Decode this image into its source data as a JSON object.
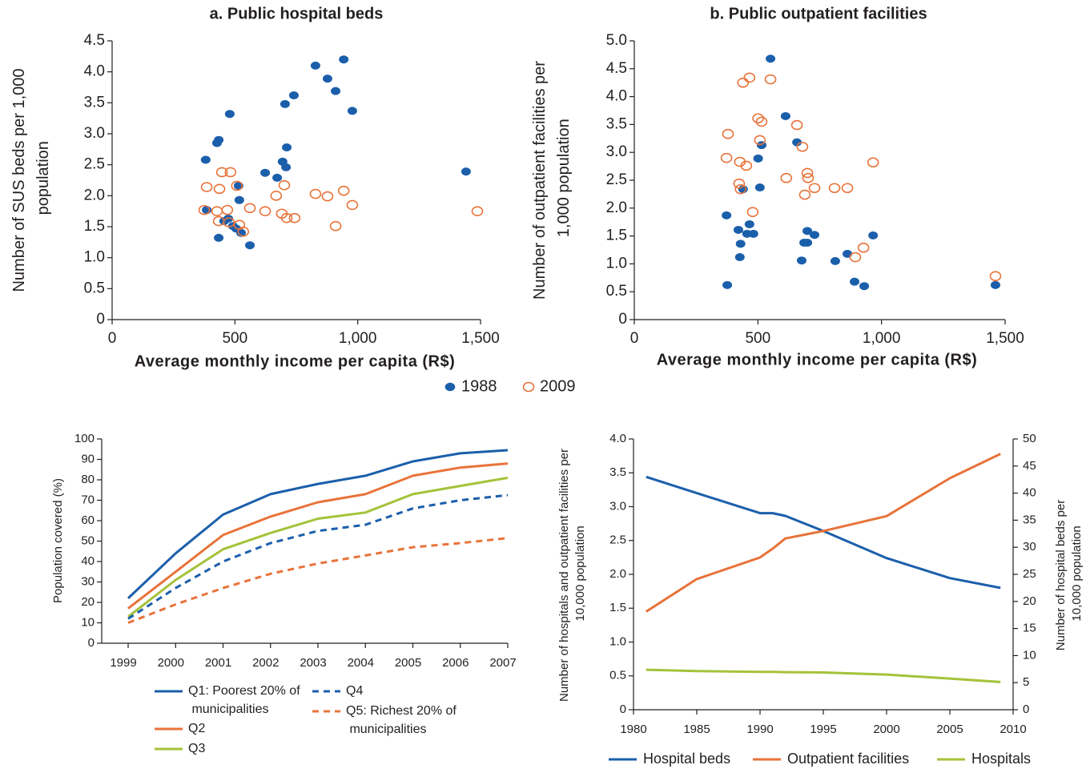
{
  "chart_data": [
    {
      "type": "scatter",
      "title": "a. Public hospital beds",
      "xlabel": "Average monthly income per capita (R$)",
      "ylabel": "Number of SUS beds per 1,000 population",
      "xlim": [
        0,
        1500
      ],
      "xticks": [
        0,
        500,
        {
          "value": 1000,
          "label": "1,000"
        },
        {
          "value": 1500,
          "label": "1,500"
        }
      ],
      "ylim": [
        0,
        4.5
      ],
      "yticks": [
        0,
        0.5,
        {
          "value": 1,
          "label": "1.0"
        },
        1.5,
        {
          "value": 2,
          "label": "2.0"
        },
        2.5,
        {
          "value": 3,
          "label": "3.0"
        },
        3.5,
        {
          "value": 4,
          "label": "4.0"
        },
        4.5
      ],
      "series": [
        {
          "name": "1988",
          "color": "#1b5fab",
          "marker": "filled",
          "x": [
            381,
            434,
            427,
            479,
            385,
            434,
            456,
            473,
            492,
            505,
            525,
            515,
            518,
            561,
            623,
            672,
            694,
            708,
            711,
            704,
            740,
            828,
            877,
            910,
            943,
            978,
            1441
          ],
          "values": [
            2.58,
            2.9,
            2.85,
            3.32,
            1.77,
            1.32,
            1.59,
            1.63,
            1.51,
            1.47,
            1.4,
            2.16,
            1.93,
            1.2,
            2.37,
            2.29,
            2.55,
            2.46,
            2.78,
            3.48,
            3.62,
            4.1,
            3.89,
            3.69,
            4.2,
            3.37,
            2.39
          ]
        },
        {
          "name": "2009",
          "color": "#e8733a",
          "marker": "open",
          "x": [
            385,
            375,
            427,
            437,
            447,
            482,
            469,
            434,
            476,
            508,
            518,
            534,
            561,
            623,
            668,
            701,
            691,
            711,
            743,
            828,
            877,
            910,
            943,
            978,
            1487
          ],
          "values": [
            2.14,
            1.77,
            1.75,
            2.11,
            2.38,
            2.38,
            1.77,
            1.59,
            1.57,
            2.16,
            1.53,
            1.42,
            1.8,
            1.75,
            2.0,
            2.17,
            1.71,
            1.64,
            1.64,
            2.03,
            1.99,
            1.51,
            2.08,
            1.85,
            1.75
          ]
        }
      ]
    },
    {
      "type": "scatter",
      "title": "b. Public outpatient facilities",
      "xlabel": "Average monthly income per capita (R$)",
      "ylabel": "Number of outpatient facilities per 1,000 population",
      "xlim": [
        0,
        1500
      ],
      "xticks": [
        0,
        500,
        {
          "value": 1000,
          "label": "1,000"
        },
        {
          "value": 1500,
          "label": "1,500"
        }
      ],
      "ylim": [
        0,
        5
      ],
      "yticks": [
        0,
        0.5,
        {
          "value": 1,
          "label": "1.0"
        },
        1.5,
        {
          "value": 2,
          "label": "2.0"
        },
        2.5,
        {
          "value": 3,
          "label": "3.0"
        },
        3.5,
        {
          "value": 4,
          "label": "4.0"
        },
        4.5,
        {
          "value": 5,
          "label": "5.0"
        }
      ],
      "series": [
        {
          "color": "#1b5fab",
          "marker": "filled",
          "x": [
            551,
            612,
            658,
            515,
            501,
            508,
            440,
            373,
            421,
            466,
            456,
            482,
            430,
            427,
            700,
            729,
            700,
            687,
            677,
            813,
            862,
            966,
            891,
            930,
            376,
            1461
          ],
          "values": [
            4.68,
            3.65,
            3.18,
            3.13,
            2.89,
            2.37,
            2.34,
            1.87,
            1.61,
            1.71,
            1.54,
            1.54,
            1.36,
            1.12,
            1.59,
            1.52,
            1.38,
            1.38,
            1.06,
            1.05,
            1.18,
            1.51,
            0.68,
            0.6,
            0.62,
            0.62
          ]
        },
        {
          "color": "#e8733a",
          "marker": "open",
          "x": [
            440,
            466,
            551,
            501,
            515,
            379,
            658,
            680,
            508,
            373,
            427,
            453,
            424,
            430,
            479,
            615,
            700,
            703,
            690,
            729,
            810,
            862,
            966,
            927,
            894,
            1461
          ],
          "values": [
            4.25,
            4.34,
            4.31,
            3.61,
            3.55,
            3.33,
            3.49,
            3.1,
            3.22,
            2.9,
            2.83,
            2.76,
            2.44,
            2.34,
            1.93,
            2.54,
            2.63,
            2.54,
            2.24,
            2.36,
            2.36,
            2.36,
            2.82,
            1.29,
            1.12,
            0.78
          ]
        }
      ]
    },
    {
      "type": "line",
      "ylabel": "Population covered (%)",
      "categories": [
        "1999",
        "2000",
        "2001",
        "2002",
        "2003",
        "2004",
        "2005",
        "2006",
        "2007"
      ],
      "ylim": [
        0,
        100
      ],
      "yticks": [
        0,
        10,
        20,
        30,
        40,
        50,
        60,
        70,
        80,
        90,
        100
      ],
      "series": [
        {
          "name": "Q1: Poorest 20% of municipalities",
          "color": "#1b5fab",
          "dashed": false,
          "values": [
            22,
            44,
            63,
            73,
            78,
            82,
            89,
            93,
            94.5
          ]
        },
        {
          "name": "Q2",
          "color": "#e8733a",
          "dashed": false,
          "values": [
            17,
            35,
            53,
            62,
            69,
            73,
            82,
            86,
            88
          ]
        },
        {
          "name": "Q3",
          "color": "#a5c23a",
          "dashed": false,
          "values": [
            13,
            31,
            46,
            54,
            61,
            64,
            73,
            77,
            81
          ]
        },
        {
          "name": "Q4",
          "color": "#1b5fab",
          "dashed": true,
          "values": [
            12,
            27,
            40,
            49,
            55,
            58,
            66,
            70,
            72.5
          ]
        },
        {
          "name": "Q5: Richest 20% of municipalities",
          "color": "#e8733a",
          "dashed": true,
          "values": [
            10,
            19,
            27,
            34,
            39,
            43,
            47,
            49,
            51.5
          ]
        }
      ]
    },
    {
      "type": "line",
      "ylabel": "Number of hospitals and outpatient facilities per 10,000 population",
      "y2label": "Number of hospital beds per 10,000 population",
      "x": [
        1981,
        1985,
        1990,
        1991,
        1992,
        1995,
        2000,
        2005,
        2009
      ],
      "xlim": [
        1980,
        2010
      ],
      "xticks": [
        1980,
        1985,
        1990,
        1995,
        2000,
        2005,
        2010
      ],
      "ylim": [
        0,
        4
      ],
      "yticks": [
        0,
        0.5,
        {
          "value": 1,
          "label": "1.0"
        },
        1.5,
        {
          "value": 2,
          "label": "2.0"
        },
        2.5,
        {
          "value": 3,
          "label": "3.0"
        },
        3.5,
        {
          "value": 4,
          "label": "4.0"
        }
      ],
      "y2lim": [
        0,
        50
      ],
      "y2ticks": [
        0,
        5,
        10,
        15,
        20,
        25,
        30,
        35,
        40,
        45,
        50
      ],
      "series": [
        {
          "name": "Hospital beds",
          "color": "#1b5fab",
          "axis": "y2",
          "values": [
            43,
            40,
            36.3,
            36.3,
            35.8,
            33,
            28,
            24.3,
            22.5
          ]
        },
        {
          "name": "Outpatient facilities",
          "color": "#e8733a",
          "values": [
            1.45,
            1.93,
            2.25,
            2.38,
            2.53,
            2.64,
            2.86,
            3.42,
            3.78
          ]
        },
        {
          "name": "Hospitals",
          "color": "#a5c23a",
          "values": [
            0.59,
            0.57,
            0.56,
            0.56,
            0.555,
            0.55,
            0.52,
            0.46,
            0.41
          ]
        }
      ]
    }
  ]
}
